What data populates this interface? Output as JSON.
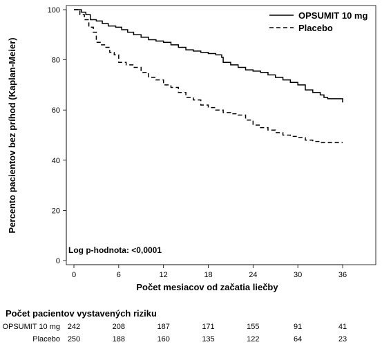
{
  "chart_data": {
    "type": "line",
    "ylabel": "Percento pacientov bez príhod (Kaplan-Meier)",
    "xlabel": "Počet mesiacov od začatia liečby",
    "xlim": [
      0,
      36
    ],
    "ylim": [
      0,
      100
    ],
    "xticks": [
      0,
      6,
      12,
      18,
      24,
      30,
      36
    ],
    "yticks": [
      0,
      20,
      40,
      60,
      80,
      100
    ],
    "annotation": "Log p-hodnota: <0,0001",
    "legend_position": "top-right",
    "series": [
      {
        "name": "OPSUMIT 10 mg",
        "style": "solid",
        "color": "#000000",
        "points": [
          [
            0,
            100
          ],
          [
            0.5,
            100
          ],
          [
            1,
            99
          ],
          [
            1.6,
            98
          ],
          [
            2.2,
            96
          ],
          [
            3,
            95.5
          ],
          [
            3.8,
            94.5
          ],
          [
            4.6,
            93.5
          ],
          [
            5.6,
            93
          ],
          [
            6.4,
            92
          ],
          [
            7.2,
            91
          ],
          [
            8,
            90
          ],
          [
            9,
            89
          ],
          [
            10,
            88
          ],
          [
            11,
            87.5
          ],
          [
            12,
            87
          ],
          [
            13,
            86
          ],
          [
            14,
            85
          ],
          [
            15,
            84
          ],
          [
            16,
            83.5
          ],
          [
            17,
            83
          ],
          [
            18,
            82.5
          ],
          [
            19,
            82
          ],
          [
            19.8,
            81
          ],
          [
            20,
            79
          ],
          [
            21,
            78
          ],
          [
            22,
            77
          ],
          [
            23,
            76
          ],
          [
            24,
            75.5
          ],
          [
            25,
            75
          ],
          [
            26,
            74
          ],
          [
            27,
            73
          ],
          [
            28,
            72
          ],
          [
            29,
            71
          ],
          [
            30,
            70
          ],
          [
            31,
            68
          ],
          [
            32,
            67
          ],
          [
            33,
            66
          ],
          [
            33.5,
            65
          ],
          [
            34,
            64.5
          ],
          [
            36,
            64.5
          ],
          [
            36,
            63
          ]
        ]
      },
      {
        "name": "Placebo",
        "style": "dashed",
        "color": "#000000",
        "points": [
          [
            0,
            100
          ],
          [
            0.8,
            98
          ],
          [
            1.4,
            96
          ],
          [
            2,
            93
          ],
          [
            2.6,
            91
          ],
          [
            3,
            87
          ],
          [
            3.6,
            86
          ],
          [
            4.2,
            85
          ],
          [
            4.8,
            83
          ],
          [
            5.4,
            82
          ],
          [
            6,
            79
          ],
          [
            7,
            78
          ],
          [
            8,
            77
          ],
          [
            9,
            75
          ],
          [
            10,
            73
          ],
          [
            11,
            72
          ],
          [
            12,
            70
          ],
          [
            13,
            69
          ],
          [
            14,
            67
          ],
          [
            15,
            65
          ],
          [
            16,
            64
          ],
          [
            17,
            62
          ],
          [
            18,
            61
          ],
          [
            19,
            60
          ],
          [
            20,
            59
          ],
          [
            21,
            58.5
          ],
          [
            22,
            58
          ],
          [
            23,
            56
          ],
          [
            24,
            54
          ],
          [
            25,
            53
          ],
          [
            26,
            52
          ],
          [
            27,
            51
          ],
          [
            28,
            50
          ],
          [
            29,
            49.5
          ],
          [
            30,
            49
          ],
          [
            31,
            48
          ],
          [
            32,
            47.5
          ],
          [
            33,
            47
          ],
          [
            36,
            47
          ]
        ]
      }
    ]
  },
  "risk_table": {
    "title": "Počet pacientov vystavených riziku",
    "rows": [
      {
        "label": "OPSUMIT 10 mg",
        "values": [
          "242",
          "208",
          "187",
          "171",
          "155",
          "91",
          "41"
        ]
      },
      {
        "label": "Placebo",
        "values": [
          "250",
          "188",
          "160",
          "135",
          "122",
          "64",
          "23"
        ]
      }
    ]
  }
}
